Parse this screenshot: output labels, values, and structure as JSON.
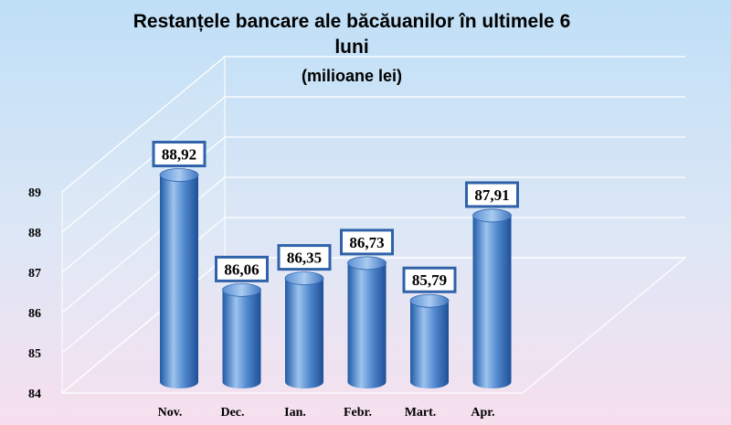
{
  "chart_data": {
    "type": "bar",
    "title": "Restanțele bancare ale băcăuanilor în ultimele 6 luni",
    "title_line1": "Restanțele bancare ale băcăuanilor în ultimele 6",
    "title_line2": "luni",
    "subtitle": "(milioane lei)",
    "categories": [
      "Nov.",
      "Dec.",
      "Ian.",
      "Febr.",
      "Mart.",
      "Apr."
    ],
    "values": [
      88.92,
      86.06,
      86.35,
      86.73,
      85.79,
      87.91
    ],
    "value_labels": [
      "88,92",
      "86,06",
      "86,35",
      "86,73",
      "85,79",
      "87,91"
    ],
    "ylim": [
      84,
      89
    ],
    "yticks": [
      84,
      85,
      86,
      87,
      88,
      89
    ],
    "xlabel": "",
    "ylabel": "",
    "grid": true,
    "style": "3d-cylinder",
    "colors": {
      "bar_light": "#9cc3ee",
      "bar_mid": "#4f86cc",
      "bar_dark": "#1d4f97",
      "grid": "#ffffff",
      "label_border": "#2f62a8",
      "label_bg": "#ffffff"
    }
  }
}
